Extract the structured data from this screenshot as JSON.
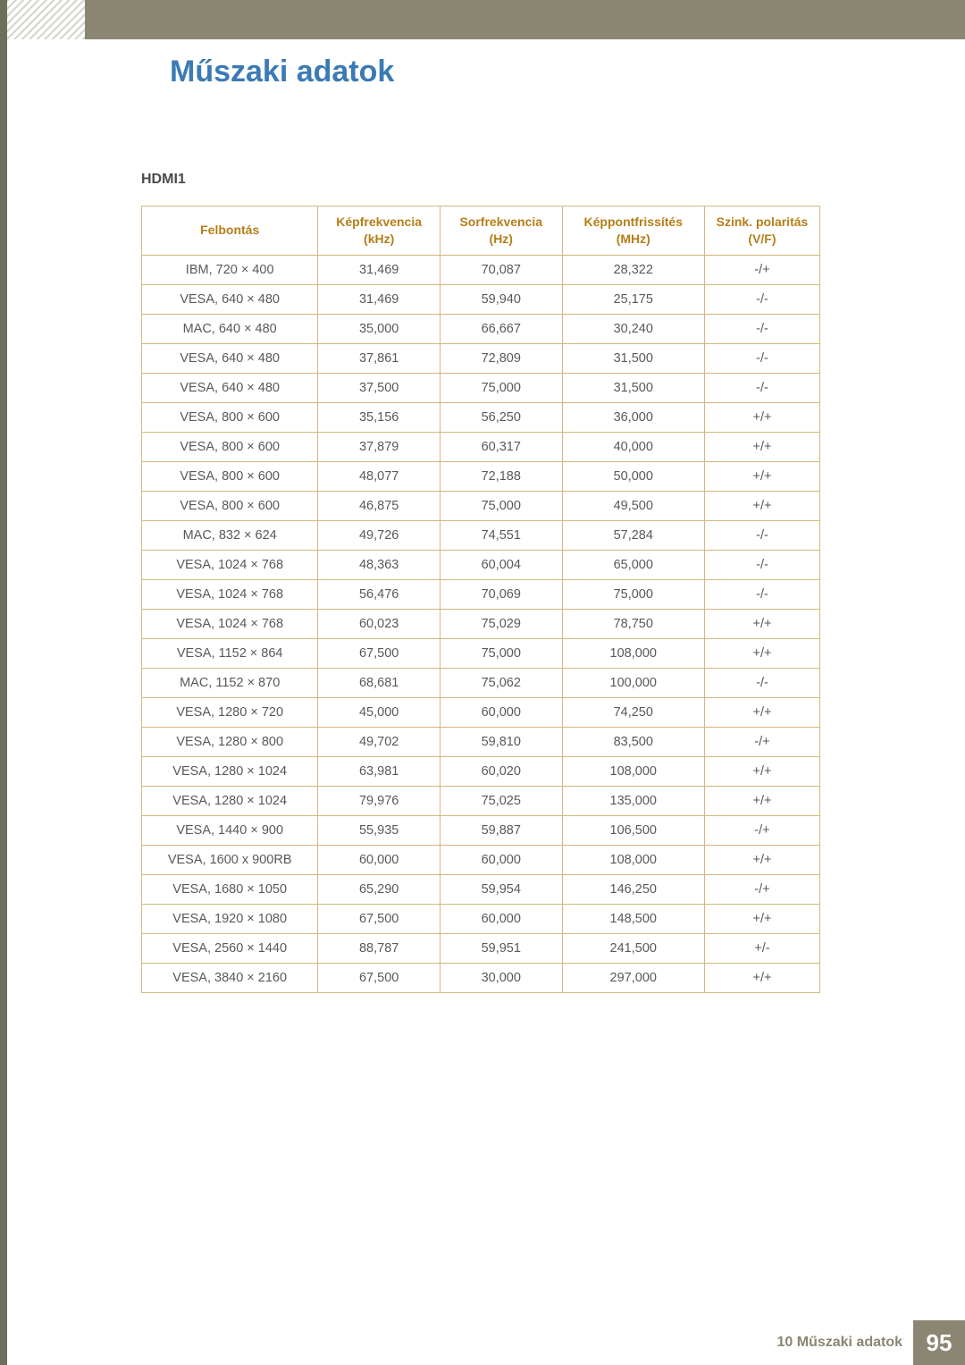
{
  "colors": {
    "header_bar": "#8a8672",
    "left_stripe": "#6e6e5c",
    "title": "#3c7ab5",
    "table_border": "#d3b77d",
    "th_text": "#b57e17",
    "td_text": "#595959",
    "chapter_mark": "#474741"
  },
  "page_title": "Műszaki adatok",
  "section_label": "HDMI1",
  "table": {
    "type": "table",
    "columns": [
      "Felbontás",
      "Képfrekvencia (kHz)",
      "Sorfrekvencia (Hz)",
      "Képpontfrissítés (MHz)",
      "Szink. polaritás (V/F)"
    ],
    "rows": [
      [
        "IBM, 720 × 400",
        "31,469",
        "70,087",
        "28,322",
        "-/+"
      ],
      [
        "VESA, 640 × 480",
        "31,469",
        "59,940",
        "25,175",
        "-/-"
      ],
      [
        "MAC, 640 × 480",
        "35,000",
        "66,667",
        "30,240",
        "-/-"
      ],
      [
        "VESA, 640 × 480",
        "37,861",
        "72,809",
        "31,500",
        "-/-"
      ],
      [
        "VESA, 640 × 480",
        "37,500",
        "75,000",
        "31,500",
        "-/-"
      ],
      [
        "VESA, 800 × 600",
        "35,156",
        "56,250",
        "36,000",
        "+/+"
      ],
      [
        "VESA, 800 × 600",
        "37,879",
        "60,317",
        "40,000",
        "+/+"
      ],
      [
        "VESA, 800 × 600",
        "48,077",
        "72,188",
        "50,000",
        "+/+"
      ],
      [
        "VESA, 800 × 600",
        "46,875",
        "75,000",
        "49,500",
        "+/+"
      ],
      [
        "MAC, 832 × 624",
        "49,726",
        "74,551",
        "57,284",
        "-/-"
      ],
      [
        "VESA, 1024 × 768",
        "48,363",
        "60,004",
        "65,000",
        "-/-"
      ],
      [
        "VESA, 1024 × 768",
        "56,476",
        "70,069",
        "75,000",
        "-/-"
      ],
      [
        "VESA, 1024 × 768",
        "60,023",
        "75,029",
        "78,750",
        "+/+"
      ],
      [
        "VESA, 1152 × 864",
        "67,500",
        "75,000",
        "108,000",
        "+/+"
      ],
      [
        "MAC, 1152 × 870",
        "68,681",
        "75,062",
        "100,000",
        "-/-"
      ],
      [
        "VESA, 1280 × 720",
        "45,000",
        "60,000",
        "74,250",
        "+/+"
      ],
      [
        "VESA, 1280 × 800",
        "49,702",
        "59,810",
        "83,500",
        "-/+"
      ],
      [
        "VESA, 1280 × 1024",
        "63,981",
        "60,020",
        "108,000",
        "+/+"
      ],
      [
        "VESA, 1280 × 1024",
        "79,976",
        "75,025",
        "135,000",
        "+/+"
      ],
      [
        "VESA, 1440 × 900",
        "55,935",
        "59,887",
        "106,500",
        "-/+"
      ],
      [
        "VESA, 1600 x 900RB",
        "60,000",
        "60,000",
        "108,000",
        "+/+"
      ],
      [
        "VESA, 1680 × 1050",
        "65,290",
        "59,954",
        "146,250",
        "-/+"
      ],
      [
        "VESA, 1920 × 1080",
        "67,500",
        "60,000",
        "148,500",
        "+/+"
      ],
      [
        "VESA, 2560 × 1440",
        "88,787",
        "59,951",
        "241,500",
        "+/-"
      ],
      [
        "VESA, 3840 × 2160",
        "67,500",
        "30,000",
        "297,000",
        "+/+"
      ]
    ]
  },
  "footer": {
    "text": "10 Műszaki adatok",
    "page_number": "95"
  }
}
